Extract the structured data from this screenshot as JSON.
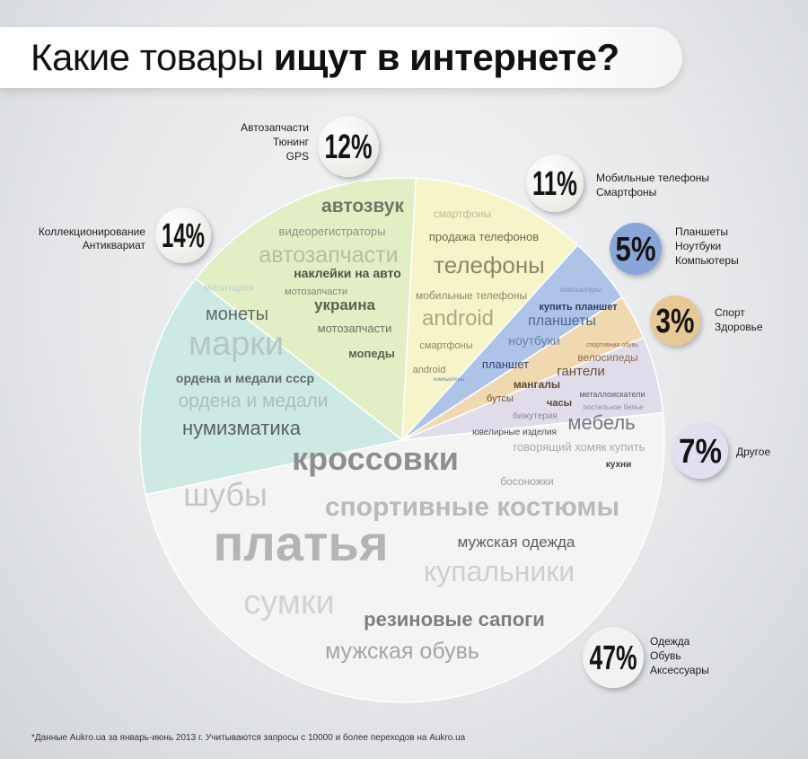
{
  "header": {
    "title_light": "Какие товары ",
    "title_bold": "ищут в интернете?"
  },
  "footnote": "*Данные Aukro.ua за январь-июнь 2013 г. Учитываются запросы с 10000 и более переходов на Aukro.ua",
  "colors": {
    "clothing": "#f4f4f3",
    "collectibles": "#cde9e4",
    "auto": "#e2efc5",
    "phones": "#f6f4c8",
    "tablets": "#aec3e8",
    "sport": "#f0d8b0",
    "other": "#e0dcea"
  },
  "chart_data": {
    "type": "pie",
    "title": "Какие товары ищут в интернете?",
    "series": [
      {
        "id": "collectibles",
        "value": 14,
        "label": "14%",
        "callout": [
          "Коллекционирование",
          "Антиквариат"
        ],
        "keywords": [
          "милитария",
          "монеты",
          "марки",
          "ордена и медали ссср",
          "ордена и медали",
          "нумизматика"
        ]
      },
      {
        "id": "auto",
        "value": 12,
        "label": "12%",
        "callout": [
          "Автозапчасти",
          "Тюнинг",
          "GPS"
        ],
        "keywords": [
          "автозвук",
          "видеорегистраторы",
          "автозапчасти",
          "наклейки на авто",
          "мотозапчасти",
          "украина",
          "мотозапчасти",
          "мопеды"
        ]
      },
      {
        "id": "phones",
        "value": 11,
        "label": "11%",
        "callout": [
          "Мобильные телефоны",
          "Смартфоны"
        ],
        "keywords": [
          "смартфоны",
          "продажа телефонов",
          "телефоны",
          "мобильные телефоны",
          "android",
          "смартфоны",
          "android"
        ]
      },
      {
        "id": "tablets",
        "value": 5,
        "label": "5%",
        "callout": [
          "Планшеты",
          "Ноутбуки",
          "Компьютеры"
        ],
        "keywords": [
          "компьютеры",
          "купить планшет",
          "планшеты",
          "ноутбуки",
          "планшет",
          "компьютеры"
        ]
      },
      {
        "id": "sport",
        "value": 3,
        "label": "3%",
        "callout": [
          "Спорт",
          "Здоровье"
        ],
        "keywords": [
          "спортивная обувь",
          "велосипеды",
          "гантели",
          "мангалы",
          "бутсы",
          "часы"
        ]
      },
      {
        "id": "other",
        "value": 7,
        "label": "7%",
        "callout": [
          "Другое"
        ],
        "keywords": [
          "металлоискатели",
          "постельное белье",
          "бижутерия",
          "мебель",
          "ювелирные изделия",
          "говорящий хомяк купить",
          "кухни"
        ]
      },
      {
        "id": "clothing",
        "value": 47,
        "label": "47%",
        "callout": [
          "Одежда",
          "Обувь",
          "Аксессуары"
        ],
        "keywords": [
          "кроссовки",
          "босоножки",
          "шубы",
          "спортивные костюмы",
          "мужская одежда",
          "платья",
          "купальники",
          "сумки",
          "резиновые сапоги",
          "мужская обувь"
        ]
      }
    ]
  }
}
